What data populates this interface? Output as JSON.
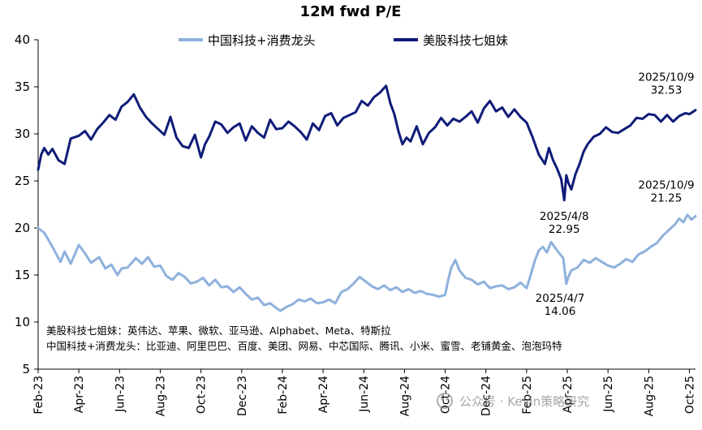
{
  "chart_data": {
    "type": "line",
    "title": "12M fwd P/E",
    "xlabel": "",
    "ylabel": "",
    "ylim": [
      5,
      40
    ],
    "yticks": [
      5,
      10,
      15,
      20,
      25,
      30,
      35,
      40
    ],
    "x_range": [
      0,
      32.3
    ],
    "x_ticks": [
      {
        "label": "Feb-23",
        "m": 0
      },
      {
        "label": "Apr-23",
        "m": 2
      },
      {
        "label": "Jun-23",
        "m": 4
      },
      {
        "label": "Aug-23",
        "m": 6
      },
      {
        "label": "Oct-23",
        "m": 8
      },
      {
        "label": "Dec-23",
        "m": 10
      },
      {
        "label": "Feb-24",
        "m": 12
      },
      {
        "label": "Apr-24",
        "m": 14
      },
      {
        "label": "Jun-24",
        "m": 16
      },
      {
        "label": "Aug-24",
        "m": 18
      },
      {
        "label": "Oct-24",
        "m": 20
      },
      {
        "label": "Dec-24",
        "m": 22
      },
      {
        "label": "Feb-25",
        "m": 24
      },
      {
        "label": "Apr-25",
        "m": 26
      },
      {
        "label": "Jun-25",
        "m": 28
      },
      {
        "label": "Aug-25",
        "m": 30
      },
      {
        "label": "Oct-25",
        "m": 32
      }
    ],
    "series": [
      {
        "name": "中国科技+消费龙头",
        "color": "#8EB1DC",
        "x": [
          0,
          0.3,
          0.6,
          0.9,
          1.1,
          1.3,
          1.6,
          2.0,
          2.3,
          2.6,
          3.0,
          3.3,
          3.6,
          3.9,
          4.1,
          4.4,
          4.8,
          5.1,
          5.4,
          5.7,
          6.0,
          6.3,
          6.6,
          6.9,
          7.2,
          7.5,
          7.8,
          8.1,
          8.4,
          8.7,
          9.0,
          9.3,
          9.6,
          9.9,
          10.2,
          10.5,
          10.8,
          11.1,
          11.4,
          11.7,
          11.9,
          12.2,
          12.5,
          12.8,
          13.1,
          13.4,
          13.7,
          14.0,
          14.3,
          14.6,
          14.9,
          15.2,
          15.5,
          15.8,
          16.1,
          16.4,
          16.7,
          17.0,
          17.3,
          17.6,
          17.9,
          18.2,
          18.5,
          18.8,
          19.1,
          19.4,
          19.7,
          20.0,
          20.15,
          20.3,
          20.5,
          20.7,
          21.0,
          21.3,
          21.6,
          21.9,
          22.2,
          22.5,
          22.8,
          23.1,
          23.4,
          23.7,
          24.0,
          24.2,
          24.4,
          24.6,
          24.8,
          25.0,
          25.2,
          25.5,
          25.8,
          25.95,
          26.05,
          26.2,
          26.5,
          26.8,
          27.1,
          27.4,
          27.7,
          28.0,
          28.3,
          28.6,
          28.9,
          29.2,
          29.5,
          29.8,
          30.1,
          30.4,
          30.7,
          31.0,
          31.3,
          31.5,
          31.7,
          31.9,
          32.1,
          32.3
        ],
        "values": [
          20.0,
          19.5,
          18.4,
          17.2,
          16.4,
          17.5,
          16.2,
          18.2,
          17.3,
          16.3,
          16.9,
          15.7,
          16.1,
          15.0,
          15.7,
          15.8,
          16.8,
          16.2,
          16.9,
          15.9,
          16.0,
          14.9,
          14.5,
          15.2,
          14.8,
          14.1,
          14.3,
          14.7,
          13.9,
          14.5,
          13.7,
          13.8,
          13.2,
          13.7,
          13.0,
          12.4,
          12.6,
          11.8,
          12.0,
          11.5,
          11.2,
          11.6,
          11.9,
          12.4,
          12.2,
          12.5,
          12.0,
          12.1,
          12.4,
          12.0,
          13.2,
          13.5,
          14.1,
          14.8,
          14.3,
          13.8,
          13.5,
          13.9,
          13.4,
          13.7,
          13.2,
          13.5,
          13.1,
          13.3,
          13.0,
          12.9,
          12.7,
          12.9,
          14.5,
          15.8,
          16.6,
          15.5,
          14.7,
          14.5,
          14.0,
          14.3,
          13.6,
          13.8,
          13.9,
          13.5,
          13.7,
          14.2,
          13.6,
          15.0,
          16.5,
          17.6,
          18.0,
          17.4,
          18.5,
          17.6,
          16.8,
          14.06,
          14.8,
          15.5,
          15.8,
          16.6,
          16.3,
          16.8,
          16.4,
          16.0,
          15.8,
          16.2,
          16.7,
          16.4,
          17.2,
          17.5,
          18.0,
          18.4,
          19.2,
          19.8,
          20.4,
          21.0,
          20.6,
          21.4,
          20.9,
          21.25
        ]
      },
      {
        "name": "美股科技七姐妹",
        "color": "#101C78",
        "x": [
          0,
          0.15,
          0.3,
          0.5,
          0.7,
          1.0,
          1.3,
          1.6,
          2.0,
          2.3,
          2.6,
          2.9,
          3.2,
          3.5,
          3.8,
          4.1,
          4.4,
          4.7,
          5.0,
          5.3,
          5.6,
          5.9,
          6.2,
          6.5,
          6.8,
          7.1,
          7.4,
          7.7,
          8.0,
          8.2,
          8.4,
          8.7,
          9.0,
          9.3,
          9.6,
          9.9,
          10.2,
          10.5,
          10.8,
          11.1,
          11.4,
          11.7,
          12.0,
          12.3,
          12.6,
          12.9,
          13.2,
          13.5,
          13.8,
          14.1,
          14.4,
          14.7,
          15.0,
          15.3,
          15.6,
          15.9,
          16.2,
          16.5,
          16.8,
          17.1,
          17.3,
          17.5,
          17.7,
          17.9,
          18.1,
          18.3,
          18.6,
          18.9,
          19.2,
          19.5,
          19.8,
          20.1,
          20.4,
          20.7,
          21.0,
          21.3,
          21.6,
          21.9,
          22.2,
          22.5,
          22.8,
          23.1,
          23.4,
          23.7,
          24.0,
          24.3,
          24.6,
          24.9,
          25.1,
          25.3,
          25.5,
          25.7,
          25.85,
          25.95,
          26.05,
          26.2,
          26.4,
          26.6,
          26.8,
          27.0,
          27.3,
          27.6,
          27.9,
          28.2,
          28.5,
          28.8,
          29.1,
          29.4,
          29.7,
          30.0,
          30.3,
          30.6,
          30.9,
          31.2,
          31.5,
          31.8,
          32.0,
          32.15,
          32.3
        ],
        "values": [
          26.2,
          27.8,
          28.5,
          27.8,
          28.4,
          27.2,
          26.8,
          29.5,
          29.8,
          30.3,
          29.4,
          30.5,
          31.2,
          32.0,
          31.5,
          32.9,
          33.4,
          34.2,
          32.8,
          31.8,
          31.1,
          30.5,
          29.9,
          31.8,
          29.6,
          28.7,
          28.5,
          29.9,
          27.5,
          28.9,
          29.7,
          31.3,
          31.0,
          30.1,
          30.7,
          31.1,
          29.3,
          30.8,
          30.1,
          29.6,
          31.5,
          30.5,
          30.6,
          31.3,
          30.8,
          30.2,
          29.4,
          31.1,
          30.4,
          31.9,
          32.2,
          30.9,
          31.7,
          32.0,
          32.3,
          33.5,
          33.0,
          33.9,
          34.4,
          35.1,
          33.3,
          32.1,
          30.3,
          28.9,
          29.6,
          29.2,
          30.8,
          28.9,
          30.1,
          30.7,
          31.7,
          30.9,
          31.6,
          31.3,
          31.8,
          32.4,
          31.2,
          32.7,
          33.5,
          32.4,
          32.8,
          31.8,
          32.6,
          31.8,
          31.2,
          29.6,
          27.8,
          26.8,
          28.5,
          27.2,
          26.3,
          25.2,
          22.95,
          25.6,
          24.8,
          24.1,
          25.7,
          26.8,
          28.1,
          28.9,
          29.7,
          30.0,
          30.7,
          30.2,
          30.1,
          30.5,
          30.9,
          31.7,
          31.6,
          32.1,
          32.0,
          31.3,
          32.0,
          31.3,
          31.9,
          32.2,
          32.1,
          32.3,
          32.53
        ]
      }
    ],
    "annotations": [
      {
        "series": 1,
        "m": 32.3,
        "date": "2025/10/9",
        "value": "32.53"
      },
      {
        "series": 1,
        "m": 25.85,
        "date": "2025/4/8",
        "value": "22.95"
      },
      {
        "series": 0,
        "m": 32.3,
        "date": "2025/10/9",
        "value": "21.25"
      },
      {
        "series": 0,
        "m": 25.8,
        "date": "2025/4/7",
        "value": "14.06"
      }
    ],
    "notes": [
      "美股科技七姐妹：英伟达、苹果、微软、亚马逊、Alphabet、Meta、特斯拉",
      "中国科技+消费龙头：比亚迪、阿里巴巴、百度、美团、网易、中芯国际、腾讯、小米、蜜雪、老铺黄金、泡泡玛特"
    ]
  },
  "watermark": "公众号 · Kevin策略研究"
}
